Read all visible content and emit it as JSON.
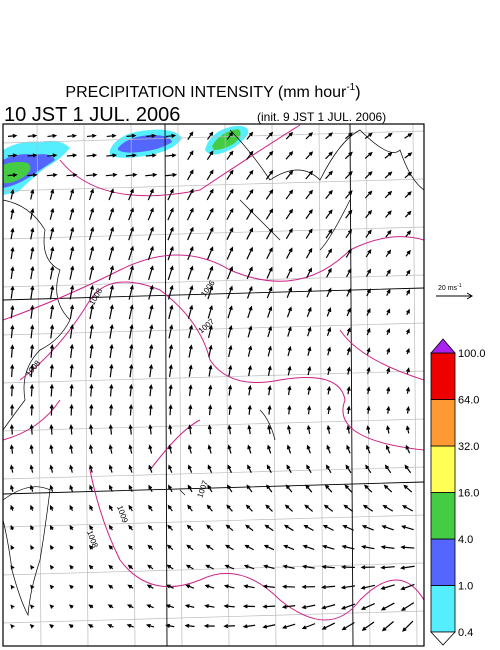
{
  "header": {
    "title": {
      "text": "PRECIPITATION INTENSITY (mm hour",
      "superscript": "-1",
      "suffix": ")"
    },
    "valid_time": "10 JST 1 JUL. 2006",
    "init_time": "(init. 9 JST 1 JUL. 2006)"
  },
  "reference_vector": {
    "text": "20 ms",
    "superscript": "-1"
  },
  "colorbar": {
    "labels": [
      "0.4",
      "1.0",
      "4.0",
      "16.0",
      "32.0",
      "64.0",
      "100.0"
    ],
    "colors": [
      "#55eeff",
      "#5566ff",
      "#44cc44",
      "#ffff55",
      "#ff9933",
      "#ee0000"
    ],
    "over_color": "#aa22ee",
    "under_color": "#ffffff"
  },
  "contour_labels": [
    "1008",
    "1006",
    "1007",
    "1008",
    "1007",
    "1009",
    "1008"
  ]
}
